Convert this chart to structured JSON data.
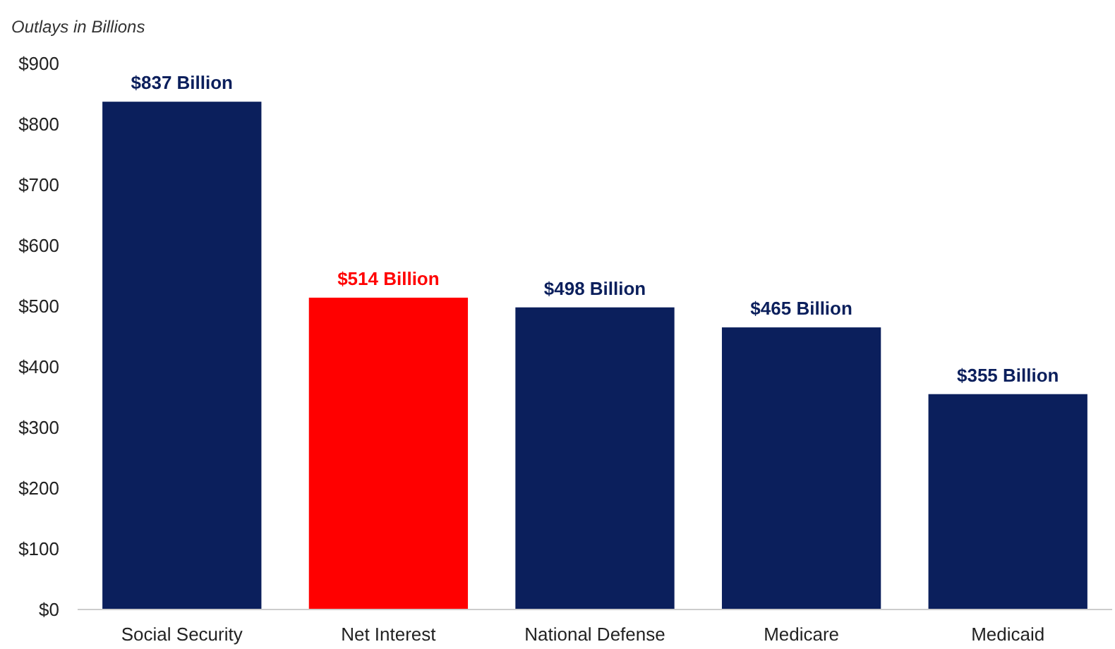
{
  "chart_data": {
    "type": "bar",
    "ylabel": "Outlays in Billions",
    "categories": [
      "Social Security",
      "Net Interest",
      "National Defense",
      "Medicare",
      "Medicaid"
    ],
    "values": [
      837,
      514,
      498,
      465,
      355
    ],
    "colors": [
      "#0b1f5c",
      "#ff0000",
      "#0b1f5c",
      "#0b1f5c",
      "#0b1f5c"
    ],
    "value_labels": [
      "$837 Billion",
      "$514 Billion",
      "$498 Billion",
      "$465 Billion",
      "$355 Billion"
    ],
    "ylim": [
      0,
      900
    ],
    "yticks": [
      {
        "value": 0,
        "label": "$0"
      },
      {
        "value": 100,
        "label": "$100"
      },
      {
        "value": 200,
        "label": "$200"
      },
      {
        "value": 300,
        "label": "$300"
      },
      {
        "value": 400,
        "label": "$400"
      },
      {
        "value": 500,
        "label": "$500"
      },
      {
        "value": 600,
        "label": "$600"
      },
      {
        "value": 700,
        "label": "$700"
      },
      {
        "value": 800,
        "label": "$800"
      },
      {
        "value": 900,
        "label": "$900"
      }
    ]
  }
}
